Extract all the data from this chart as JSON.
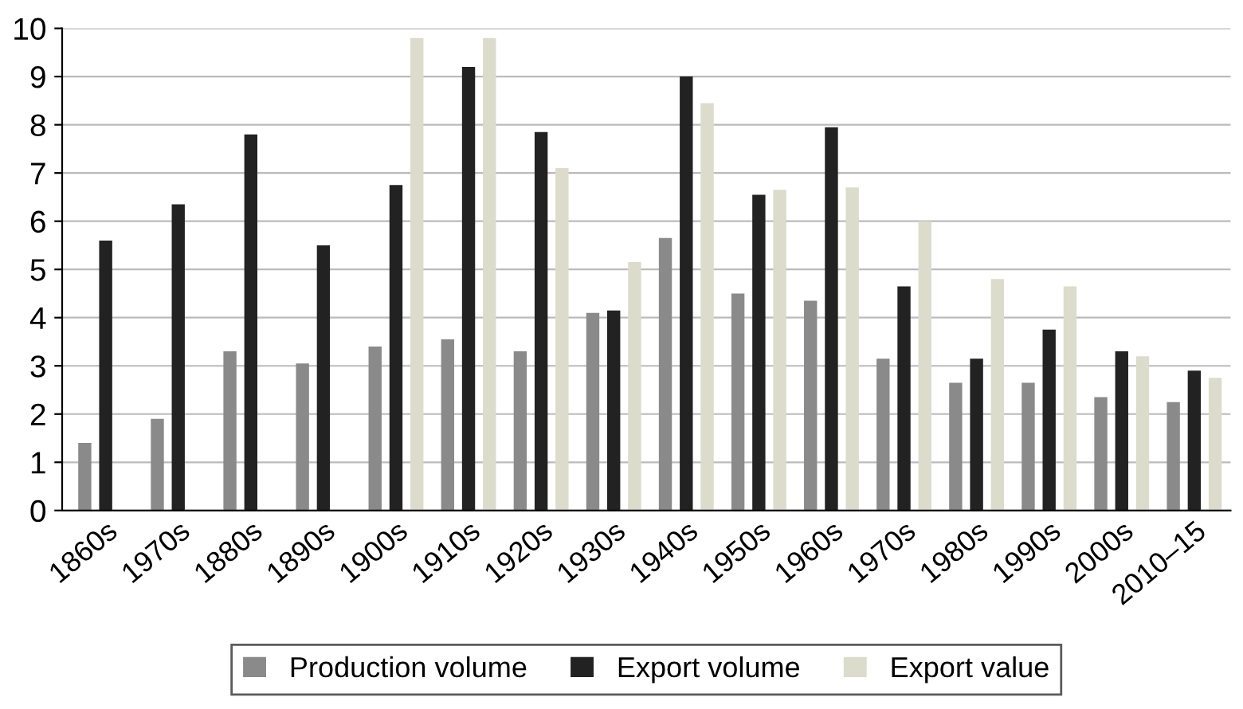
{
  "chart_data": {
    "type": "bar",
    "categories": [
      "1860s",
      "1970s",
      "1880s",
      "1890s",
      "1900s",
      "1910s",
      "1920s",
      "1930s",
      "1940s",
      "1950s",
      "1960s",
      "1970s",
      "1980s",
      "1990s",
      "2000s",
      "2010–15"
    ],
    "series": [
      {
        "name": "Production volume",
        "color": "#8a8a8a",
        "values": [
          1.4,
          1.9,
          3.3,
          3.05,
          3.4,
          3.55,
          3.3,
          4.1,
          5.65,
          4.5,
          4.35,
          3.15,
          2.65,
          2.65,
          2.35,
          2.25
        ]
      },
      {
        "name": "Export volume",
        "color": "#222222",
        "values": [
          5.6,
          6.35,
          7.8,
          5.5,
          6.75,
          9.2,
          7.85,
          4.15,
          9.0,
          6.55,
          7.95,
          4.65,
          3.15,
          3.75,
          3.3,
          2.9
        ]
      },
      {
        "name": "Export value",
        "color": "#dcdccc",
        "values": [
          null,
          null,
          null,
          null,
          9.8,
          9.8,
          7.1,
          5.15,
          8.45,
          6.65,
          6.7,
          6.0,
          4.8,
          4.65,
          3.2,
          2.75
        ]
      }
    ],
    "ylim": [
      0,
      10
    ],
    "yticks": [
      0,
      1,
      2,
      3,
      4,
      5,
      6,
      7,
      8,
      9,
      10
    ],
    "grid": "y",
    "legend": "bottom"
  }
}
